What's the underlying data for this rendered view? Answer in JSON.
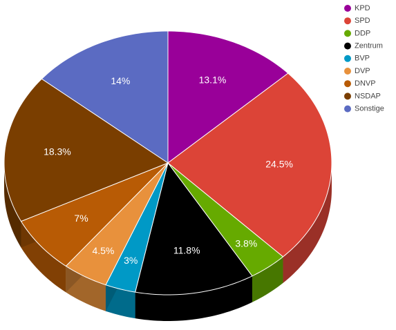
{
  "chart_data": {
    "type": "pie",
    "categories": [
      "KPD",
      "SPD",
      "DDP",
      "Zentrum",
      "BVP",
      "DVP",
      "DNVP",
      "NSDAP",
      "Sonstige"
    ],
    "values": [
      13.1,
      24.5,
      3.8,
      11.8,
      3,
      4.5,
      7,
      18.3,
      14
    ],
    "value_labels": [
      "13.1%",
      "24.5%",
      "3.8%",
      "11.8%",
      "3%",
      "4.5%",
      "7%",
      "18.3%",
      "14%"
    ],
    "colors": [
      "#990099",
      "#dc4437",
      "#66aa00",
      "#000000",
      "#0099c6",
      "#e8913c",
      "#b85b05",
      "#7a3e00",
      "#5b6bc2"
    ],
    "legend": "top-right"
  }
}
